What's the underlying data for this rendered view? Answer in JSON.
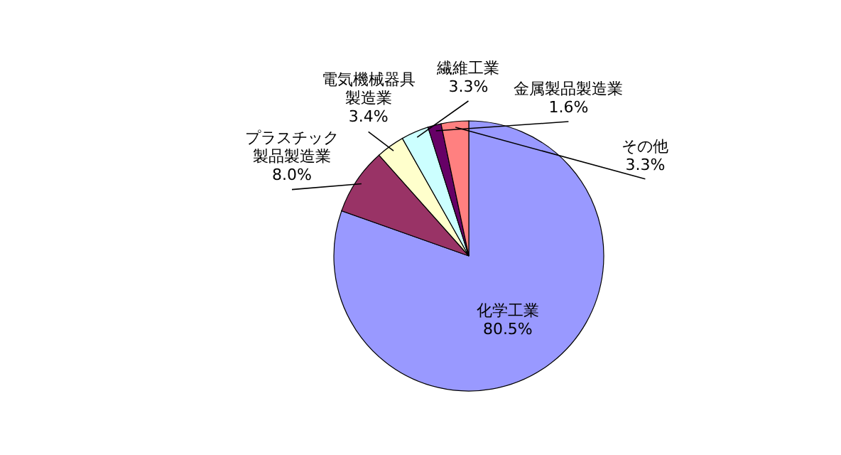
{
  "chart_data": {
    "type": "pie",
    "categories": [
      "化学工業",
      "プラスチック製品製造業",
      "電気機械器具製造業",
      "繊維工業",
      "金属製品製造業",
      "その他"
    ],
    "values": [
      80.5,
      8.0,
      3.4,
      3.3,
      1.6,
      3.3
    ],
    "value_labels": [
      "80.5%",
      "8.0%",
      "3.4%",
      "3.3%",
      "1.6%",
      "3.3%"
    ],
    "colors": [
      "#9999ff",
      "#993366",
      "#ffffcc",
      "#ccffff",
      "#660066",
      "#ff8080"
    ]
  }
}
